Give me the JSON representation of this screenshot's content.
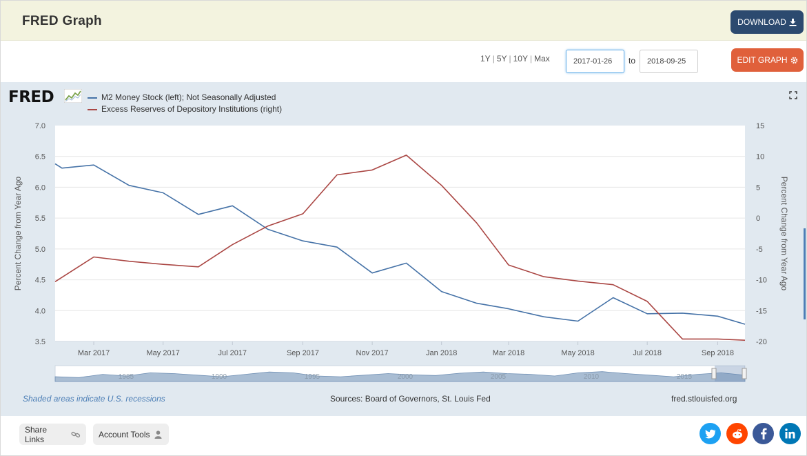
{
  "header": {
    "title": "FRED Graph",
    "download_label": "DOWNLOAD"
  },
  "controls": {
    "range_1y": "1Y",
    "range_5y": "5Y",
    "range_10y": "10Y",
    "range_max": "Max",
    "range_sep": "|",
    "start_date": "2017-01-26",
    "to_label": "to",
    "end_date": "2018-09-25",
    "edit_label": "EDIT GRAPH"
  },
  "logo": {
    "text": "FRED"
  },
  "chart_data": {
    "type": "line",
    "series": [
      {
        "name": "M2 Money Stock (left); Not Seasonally Adjusted",
        "axis": "left",
        "color": "#4572a7",
        "points": [
          [
            "2017-01-26",
            6.38
          ],
          [
            "2017-02-01",
            6.31
          ],
          [
            "2017-03-01",
            6.36
          ],
          [
            "2017-04-01",
            6.03
          ],
          [
            "2017-05-01",
            5.91
          ],
          [
            "2017-06-01",
            5.56
          ],
          [
            "2017-07-01",
            5.7
          ],
          [
            "2017-08-01",
            5.32
          ],
          [
            "2017-09-01",
            5.13
          ],
          [
            "2017-10-01",
            5.03
          ],
          [
            "2017-11-01",
            4.61
          ],
          [
            "2017-12-01",
            4.77
          ],
          [
            "2018-01-01",
            4.31
          ],
          [
            "2018-02-01",
            4.12
          ],
          [
            "2018-03-01",
            4.03
          ],
          [
            "2018-04-01",
            3.9
          ],
          [
            "2018-05-01",
            3.83
          ],
          [
            "2018-06-01",
            4.21
          ],
          [
            "2018-07-01",
            3.95
          ],
          [
            "2018-08-01",
            3.96
          ],
          [
            "2018-09-01",
            3.91
          ],
          [
            "2018-09-25",
            3.78
          ]
        ]
      },
      {
        "name": "Excess Reserves of Depository Institutions (right)",
        "axis": "right",
        "color": "#aa4643",
        "points": [
          [
            "2017-01-26",
            -10.3
          ],
          [
            "2017-03-01",
            -6.3
          ],
          [
            "2017-04-01",
            -7.0
          ],
          [
            "2017-05-01",
            -7.5
          ],
          [
            "2017-06-01",
            -7.9
          ],
          [
            "2017-07-01",
            -4.3
          ],
          [
            "2017-08-01",
            -1.3
          ],
          [
            "2017-09-01",
            0.7
          ],
          [
            "2017-10-01",
            7.0
          ],
          [
            "2017-11-01",
            7.8
          ],
          [
            "2017-12-01",
            10.2
          ],
          [
            "2018-01-01",
            5.3
          ],
          [
            "2018-02-01",
            -0.8
          ],
          [
            "2018-03-01",
            -7.6
          ],
          [
            "2018-04-01",
            -9.5
          ],
          [
            "2018-05-01",
            -10.2
          ],
          [
            "2018-06-01",
            -10.8
          ],
          [
            "2018-07-01",
            -13.5
          ],
          [
            "2018-08-01",
            -19.6
          ],
          [
            "2018-09-01",
            -19.6
          ],
          [
            "2018-09-25",
            -19.8
          ]
        ]
      }
    ],
    "left_axis": {
      "label": "Percent Change from Year Ago",
      "min": 3.5,
      "max": 7.0,
      "ticks": [
        "3.5",
        "4.0",
        "4.5",
        "5.0",
        "5.5",
        "6.0",
        "6.5",
        "7.0"
      ]
    },
    "right_axis": {
      "label": "Percent Change from Year Ago",
      "min": -20,
      "max": 15,
      "ticks": [
        "-20",
        "-15",
        "-10",
        "-5",
        "0",
        "5",
        "10",
        "15"
      ]
    },
    "x_axis": {
      "start": "2017-01-26",
      "end": "2018-09-25",
      "ticks": [
        {
          "date": "2017-03-01",
          "label": "Mar 2017"
        },
        {
          "date": "2017-05-01",
          "label": "May 2017"
        },
        {
          "date": "2017-07-01",
          "label": "Jul 2017"
        },
        {
          "date": "2017-09-01",
          "label": "Sep 2017"
        },
        {
          "date": "2017-11-01",
          "label": "Nov 2017"
        },
        {
          "date": "2018-01-01",
          "label": "Jan 2018"
        },
        {
          "date": "2018-03-01",
          "label": "Mar 2018"
        },
        {
          "date": "2018-05-01",
          "label": "May 2018"
        },
        {
          "date": "2018-07-01",
          "label": "Jul 2018"
        },
        {
          "date": "2018-09-01",
          "label": "Sep 2018"
        }
      ]
    },
    "navigator": {
      "year_labels": [
        "1985",
        "1990",
        "1995",
        "2000",
        "2005",
        "2010",
        "2015"
      ]
    }
  },
  "footer": {
    "recession_note": "Shaded areas indicate U.S. recessions",
    "sources": "Sources: Board of Governors, St. Louis Fed",
    "site": "fred.stlouisfed.org"
  },
  "bottom": {
    "share_label": "Share Links",
    "account_label": "Account Tools"
  },
  "colors": {
    "m2": "#4572a7",
    "reserves": "#aa4643",
    "download_bg": "#2c4a6f",
    "edit_bg": "#e0603b"
  },
  "social": {
    "twitter_color": "#1da1f2",
    "reddit_color": "#ff4500",
    "facebook_color": "#3b5998",
    "linkedin_color": "#0077b5"
  }
}
